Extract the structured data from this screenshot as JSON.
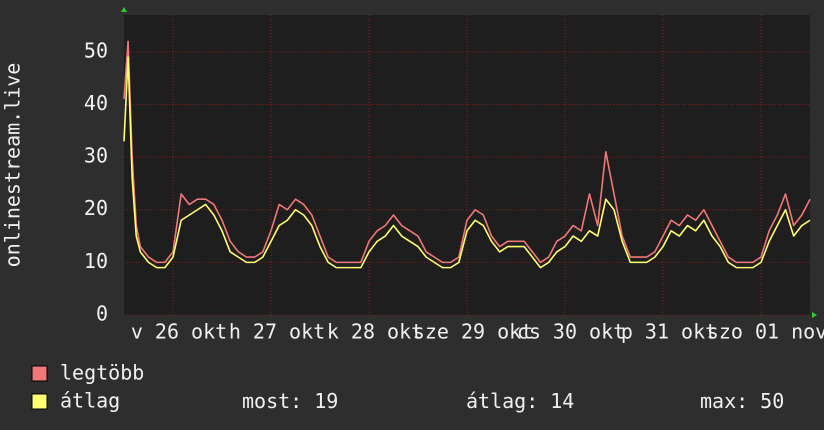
{
  "chart_data": {
    "type": "line",
    "ylabel": "onlinestream.live",
    "x": [
      0,
      1,
      2,
      3,
      4,
      6,
      8,
      10,
      12,
      14,
      16,
      18,
      20,
      22,
      24,
      26,
      28,
      30,
      32,
      34,
      36,
      38,
      40,
      42,
      44,
      46,
      48,
      50,
      52,
      54,
      56,
      58,
      60,
      62,
      64,
      66,
      68,
      70,
      72,
      74,
      76,
      78,
      80,
      82,
      84,
      86,
      88,
      90,
      92,
      94,
      96,
      98,
      100,
      102,
      104,
      106,
      108,
      110,
      112,
      114,
      116,
      118,
      120,
      122,
      124,
      126,
      128,
      130,
      132,
      134,
      136,
      138,
      140,
      142,
      144,
      146,
      148,
      150,
      152,
      154,
      156,
      158,
      160,
      162,
      164,
      166,
      168
    ],
    "series": [
      {
        "name": "legtöbb",
        "color": "#f07878",
        "values": [
          41,
          52,
          30,
          17,
          13,
          11,
          10,
          10,
          12,
          23,
          21,
          22,
          22,
          21,
          18,
          14,
          12,
          11,
          11,
          12,
          16,
          21,
          20,
          22,
          21,
          19,
          15,
          11,
          10,
          10,
          10,
          10,
          14,
          16,
          17,
          19,
          17,
          16,
          15,
          12,
          11,
          10,
          10,
          11,
          18,
          20,
          19,
          15,
          13,
          14,
          14,
          14,
          12,
          10,
          11,
          14,
          15,
          17,
          16,
          23,
          17,
          31,
          23,
          15,
          11,
          11,
          11,
          12,
          15,
          18,
          17,
          19,
          18,
          20,
          17,
          14,
          11,
          10,
          10,
          10,
          11,
          16,
          19,
          23,
          17,
          19,
          22
        ]
      },
      {
        "name": "átlag",
        "color": "#ffff70",
        "values": [
          33,
          49,
          26,
          15,
          12,
          10,
          9,
          9,
          11,
          18,
          19,
          20,
          21,
          19,
          16,
          12,
          11,
          10,
          10,
          11,
          14,
          17,
          18,
          20,
          19,
          17,
          13,
          10,
          9,
          9,
          9,
          9,
          12,
          14,
          15,
          17,
          15,
          14,
          13,
          11,
          10,
          9,
          9,
          10,
          16,
          18,
          17,
          14,
          12,
          13,
          13,
          13,
          11,
          9,
          10,
          12,
          13,
          15,
          14,
          16,
          15,
          22,
          20,
          14,
          10,
          10,
          10,
          11,
          13,
          16,
          15,
          17,
          16,
          18,
          15,
          13,
          10,
          9,
          9,
          9,
          10,
          14,
          17,
          20,
          15,
          17,
          18
        ]
      }
    ],
    "xlim": [
      0,
      168
    ],
    "xticks": [
      {
        "value": 12,
        "label": "v 26 okt"
      },
      {
        "value": 36,
        "label": "h 27 okt"
      },
      {
        "value": 60,
        "label": "k 28 okt"
      },
      {
        "value": 84,
        "label": "sze 29 okt"
      },
      {
        "value": 108,
        "label": "cs 30 okt"
      },
      {
        "value": 132,
        "label": "p 31 okt"
      },
      {
        "value": 156,
        "label": "szo 01 nov"
      }
    ],
    "ylim": [
      0,
      57
    ],
    "yticks": [
      0,
      10,
      20,
      30,
      40,
      50
    ],
    "grid": true,
    "stats": [
      {
        "label": "most:",
        "value": 19
      },
      {
        "label": "átlag:",
        "value": 14
      },
      {
        "label": "max:",
        "value": 50
      }
    ]
  }
}
